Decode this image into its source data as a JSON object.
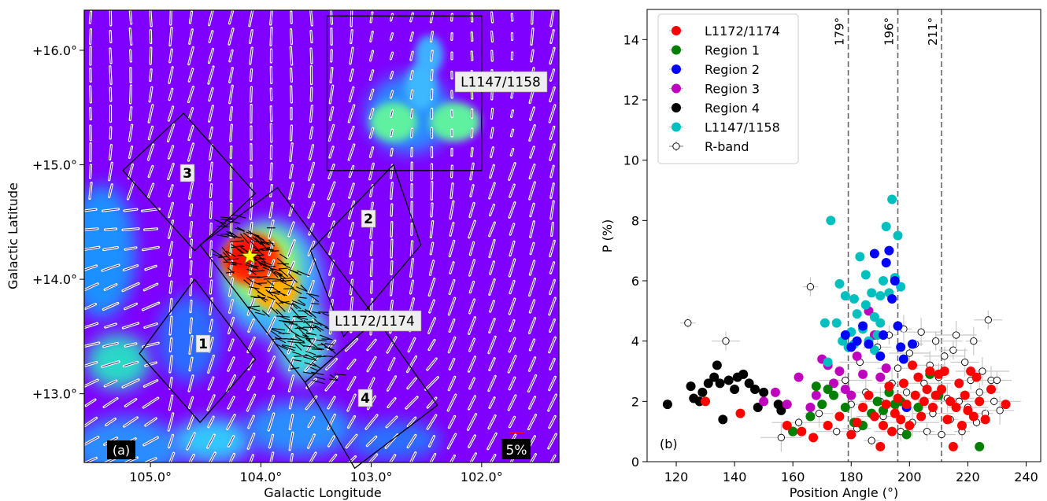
{
  "panels": {
    "a": {
      "tag": "(a)",
      "scale_label": "5%",
      "xlabel": "Galactic Longitude",
      "ylabel": "Galactic Latitude",
      "x_ticks": [
        "105.0°",
        "104.0°",
        "103.0°",
        "102.0°"
      ],
      "y_ticks": [
        "+16.0°",
        "+15.0°",
        "+14.0°",
        "+13.0°"
      ],
      "region_labels": [
        "1",
        "2",
        "3",
        "4"
      ],
      "cloud_labels": [
        "L1147/1158",
        "L1172/1174"
      ]
    },
    "b": {
      "tag": "(b)",
      "xlabel": "Position Angle (°)",
      "ylabel": "P (%)",
      "vline_labels": [
        "179°",
        "196°",
        "211°"
      ]
    }
  },
  "colors": {
    "L1172/1174": "#ff0000",
    "Region 1": "#007f00",
    "Region 2": "#0000ff",
    "Region 3": "#bf00bf",
    "Region 4": "#000000",
    "L1147/1158": "#00bfbf",
    "background_map": "#7f00ff"
  },
  "chart_data": [
    {
      "type": "image",
      "panel": "a",
      "xlabel": "Galactic Longitude",
      "ylabel": "Galactic Latitude",
      "xlim": [
        105.6,
        101.3
      ],
      "ylim": [
        12.4,
        16.35
      ],
      "x_ticks": [
        105.0,
        104.0,
        103.0,
        102.0
      ],
      "y_ticks": [
        16.0,
        15.0,
        14.0,
        13.0
      ],
      "regions": [
        {
          "label": "1",
          "corners": [
            [
              104.6,
              14.0
            ],
            [
              104.05,
              13.3
            ],
            [
              104.55,
              12.75
            ],
            [
              105.1,
              13.35
            ]
          ]
        },
        {
          "label": "2",
          "corners": [
            [
              103.55,
              14.25
            ],
            [
              102.8,
              15.0
            ],
            [
              102.55,
              14.3
            ],
            [
              103.25,
              13.5
            ]
          ]
        },
        {
          "label": "3",
          "corners": [
            [
              104.7,
              15.45
            ],
            [
              104.05,
              14.75
            ],
            [
              104.6,
              14.25
            ],
            [
              105.25,
              14.95
            ]
          ]
        },
        {
          "label": "4",
          "corners": [
            [
              103.6,
              13.1
            ],
            [
              102.95,
              13.65
            ],
            [
              102.4,
              12.9
            ],
            [
              103.15,
              12.35
            ]
          ]
        },
        {
          "label": "L1172/1174",
          "corners": [
            [
              104.55,
              14.3
            ],
            [
              103.85,
              14.8
            ],
            [
              102.95,
              13.65
            ],
            [
              103.6,
              13.1
            ]
          ]
        },
        {
          "label": "L1147/1158",
          "corners": [
            [
              103.4,
              16.3
            ],
            [
              102.0,
              16.3
            ],
            [
              102.0,
              14.95
            ],
            [
              103.4,
              14.95
            ]
          ]
        }
      ],
      "star": [
        104.1,
        14.2
      ],
      "scale_bar": "5%"
    },
    {
      "type": "scatter",
      "panel": "b",
      "xlabel": "Position Angle (°)",
      "ylabel": "P (%)",
      "xlim": [
        110,
        245
      ],
      "ylim": [
        0,
        15
      ],
      "x_ticks": [
        120,
        140,
        160,
        180,
        200,
        220,
        240
      ],
      "y_ticks": [
        0,
        2,
        4,
        6,
        8,
        10,
        12,
        14
      ],
      "vlines": [
        179,
        196,
        211
      ],
      "legend_loc": "upper left",
      "series": [
        {
          "name": "L1172/1174",
          "color": "#ff0000",
          "points": [
            [
              130,
              2.0
            ],
            [
              142,
              1.6
            ],
            [
              158,
              1.2
            ],
            [
              163,
              1.0
            ],
            [
              167,
              0.8
            ],
            [
              172,
              1.2
            ],
            [
              176,
              1.5
            ],
            [
              180,
              0.9
            ],
            [
              182,
              1.3
            ],
            [
              184,
              1.8
            ],
            [
              186,
              2.2
            ],
            [
              188,
              1.5
            ],
            [
              190,
              0.5
            ],
            [
              191,
              1.2
            ],
            [
              192,
              1.9
            ],
            [
              193,
              2.5
            ],
            [
              194,
              1.0
            ],
            [
              195,
              1.6
            ],
            [
              196,
              2.1
            ],
            [
              197,
              1.4
            ],
            [
              198,
              2.6
            ],
            [
              199,
              1.9
            ],
            [
              200,
              1.2
            ],
            [
              201,
              3.2
            ],
            [
              202,
              2.2
            ],
            [
              203,
              2.8
            ],
            [
              204,
              1.5
            ],
            [
              205,
              2.0
            ],
            [
              206,
              2.4
            ],
            [
              207,
              3.0
            ],
            [
              208,
              1.8
            ],
            [
              209,
              2.2
            ],
            [
              210,
              2.9
            ],
            [
              211,
              2.4
            ],
            [
              212,
              3.0
            ],
            [
              213,
              1.4
            ],
            [
              214,
              2.0
            ],
            [
              215,
              0.5
            ],
            [
              216,
              1.8
            ],
            [
              217,
              2.6
            ],
            [
              218,
              1.2
            ],
            [
              219,
              2.2
            ],
            [
              220,
              1.7
            ],
            [
              221,
              3.0
            ],
            [
              222,
              1.5
            ],
            [
              223,
              2.8
            ],
            [
              224,
              2.0
            ],
            [
              226,
              1.4
            ],
            [
              228,
              2.4
            ],
            [
              233,
              1.9
            ]
          ]
        },
        {
          "name": "Region 1",
          "color": "#007f00",
          "points": [
            [
              160,
              1.0
            ],
            [
              166,
              1.5
            ],
            [
              168,
              2.5
            ],
            [
              170,
              1.9
            ],
            [
              172,
              2.4
            ],
            [
              174,
              2.2
            ],
            [
              178,
              1.8
            ],
            [
              181,
              1.3
            ],
            [
              184,
              1.2
            ],
            [
              187,
              1.6
            ],
            [
              189,
              2.0
            ],
            [
              191,
              1.7
            ],
            [
              193,
              2.3
            ],
            [
              195,
              1.9
            ],
            [
              197,
              2.0
            ],
            [
              199,
              0.9
            ],
            [
              203,
              1.8
            ],
            [
              207,
              2.9
            ],
            [
              210,
              2.2
            ],
            [
              224,
              0.5
            ]
          ]
        },
        {
          "name": "Region 2",
          "color": "#0000ff",
          "points": [
            [
              178,
              4.2
            ],
            [
              180,
              3.8
            ],
            [
              182,
              4.0
            ],
            [
              184,
              4.5
            ],
            [
              186,
              3.9
            ],
            [
              188,
              6.9
            ],
            [
              190,
              3.5
            ],
            [
              191,
              4.2
            ],
            [
              192,
              6.6
            ],
            [
              193,
              7.0
            ],
            [
              194,
              5.4
            ],
            [
              195,
              6.0
            ],
            [
              196,
              4.5
            ],
            [
              197,
              3.8
            ],
            [
              198,
              3.4
            ],
            [
              199,
              1.8
            ],
            [
              201,
              3.9
            ]
          ]
        },
        {
          "name": "Region 3",
          "color": "#bf00bf",
          "points": [
            [
              150,
              2.0
            ],
            [
              154,
              2.3
            ],
            [
              158,
              1.9
            ],
            [
              162,
              2.8
            ],
            [
              166,
              1.8
            ],
            [
              168,
              2.2
            ],
            [
              170,
              3.4
            ],
            [
              172,
              3.2
            ],
            [
              174,
              2.6
            ],
            [
              176,
              3.0
            ],
            [
              178,
              2.4
            ],
            [
              180,
              2.2
            ],
            [
              182,
              3.5
            ],
            [
              184,
              2.9
            ],
            [
              186,
              5.0
            ],
            [
              188,
              4.2
            ],
            [
              190,
              2.8
            ],
            [
              192,
              3.1
            ]
          ]
        },
        {
          "name": "Region 4",
          "color": "#000000",
          "points": [
            [
              117,
              1.9
            ],
            [
              125,
              2.5
            ],
            [
              126,
              2.1
            ],
            [
              128,
              2.0
            ],
            [
              129,
              2.3
            ],
            [
              131,
              2.6
            ],
            [
              133,
              2.8
            ],
            [
              134,
              3.2
            ],
            [
              135,
              2.6
            ],
            [
              136,
              1.4
            ],
            [
              138,
              2.7
            ],
            [
              140,
              2.4
            ],
            [
              141,
              2.8
            ],
            [
              143,
              2.9
            ],
            [
              145,
              2.6
            ],
            [
              147,
              2.4
            ],
            [
              148,
              1.8
            ],
            [
              150,
              2.3
            ],
            [
              155,
              1.9
            ],
            [
              156,
              1.7
            ],
            [
              160,
              1.0
            ]
          ]
        },
        {
          "name": "L1147/1158",
          "color": "#00bfbf",
          "points": [
            [
              171,
              4.6
            ],
            [
              172,
              3.3
            ],
            [
              173,
              8.0
            ],
            [
              175,
              4.6
            ],
            [
              176,
              5.9
            ],
            [
              177,
              4.0
            ],
            [
              178,
              5.5
            ],
            [
              179,
              3.8
            ],
            [
              180,
              4.3
            ],
            [
              181,
              5.4
            ],
            [
              182,
              4.9
            ],
            [
              183,
              6.8
            ],
            [
              184,
              4.4
            ],
            [
              185,
              5.2
            ],
            [
              186,
              4.0
            ],
            [
              187,
              5.6
            ],
            [
              188,
              4.8
            ],
            [
              189,
              4.2
            ],
            [
              190,
              5.5
            ],
            [
              191,
              6.0
            ],
            [
              192,
              7.8
            ],
            [
              193,
              5.6
            ],
            [
              194,
              8.7
            ],
            [
              195,
              6.1
            ],
            [
              196,
              7.5
            ],
            [
              197,
              5.8
            ],
            [
              185,
              6.2
            ],
            [
              188,
              3.7
            ],
            [
              181,
              3.9
            ],
            [
              190,
              4.6
            ]
          ]
        },
        {
          "name": "R-band",
          "color": "#ffffff",
          "points": [
            [
              124,
              4.6
            ],
            [
              137,
              4.0
            ],
            [
              156,
              0.8
            ],
            [
              162,
              1.3
            ],
            [
              166,
              5.8
            ],
            [
              169,
              1.6
            ],
            [
              175,
              1.0
            ],
            [
              178,
              2.7
            ],
            [
              180,
              1.9
            ],
            [
              182,
              1.1
            ],
            [
              183,
              3.3
            ],
            [
              185,
              2.3
            ],
            [
              187,
              0.7
            ],
            [
              189,
              3.8
            ],
            [
              190,
              2.0
            ],
            [
              191,
              1.5
            ],
            [
              193,
              4.2
            ],
            [
              194,
              2.6
            ],
            [
              196,
              3.1
            ],
            [
              197,
              1.0
            ],
            [
              198,
              4.4
            ],
            [
              199,
              2.3
            ],
            [
              200,
              3.6
            ],
            [
              201,
              1.3
            ],
            [
              202,
              3.9
            ],
            [
              203,
              1.8
            ],
            [
              204,
              4.3
            ],
            [
              205,
              2.6
            ],
            [
              206,
              1.0
            ],
            [
              207,
              3.2
            ],
            [
              208,
              1.6
            ],
            [
              209,
              4.0
            ],
            [
              210,
              2.8
            ],
            [
              211,
              0.9
            ],
            [
              212,
              3.5
            ],
            [
              213,
              2.1
            ],
            [
              214,
              1.4
            ],
            [
              215,
              3.7
            ],
            [
              216,
              4.2
            ],
            [
              217,
              2.0
            ],
            [
              218,
              1.0
            ],
            [
              219,
              3.3
            ],
            [
              220,
              1.8
            ],
            [
              221,
              2.7
            ],
            [
              222,
              4.0
            ],
            [
              223,
              1.3
            ],
            [
              224,
              2.3
            ],
            [
              225,
              3.0
            ],
            [
              226,
              1.6
            ],
            [
              227,
              4.7
            ],
            [
              228,
              2.7
            ],
            [
              229,
              2.0
            ],
            [
              230,
              2.7
            ],
            [
              231,
              1.7
            ]
          ]
        }
      ]
    }
  ]
}
